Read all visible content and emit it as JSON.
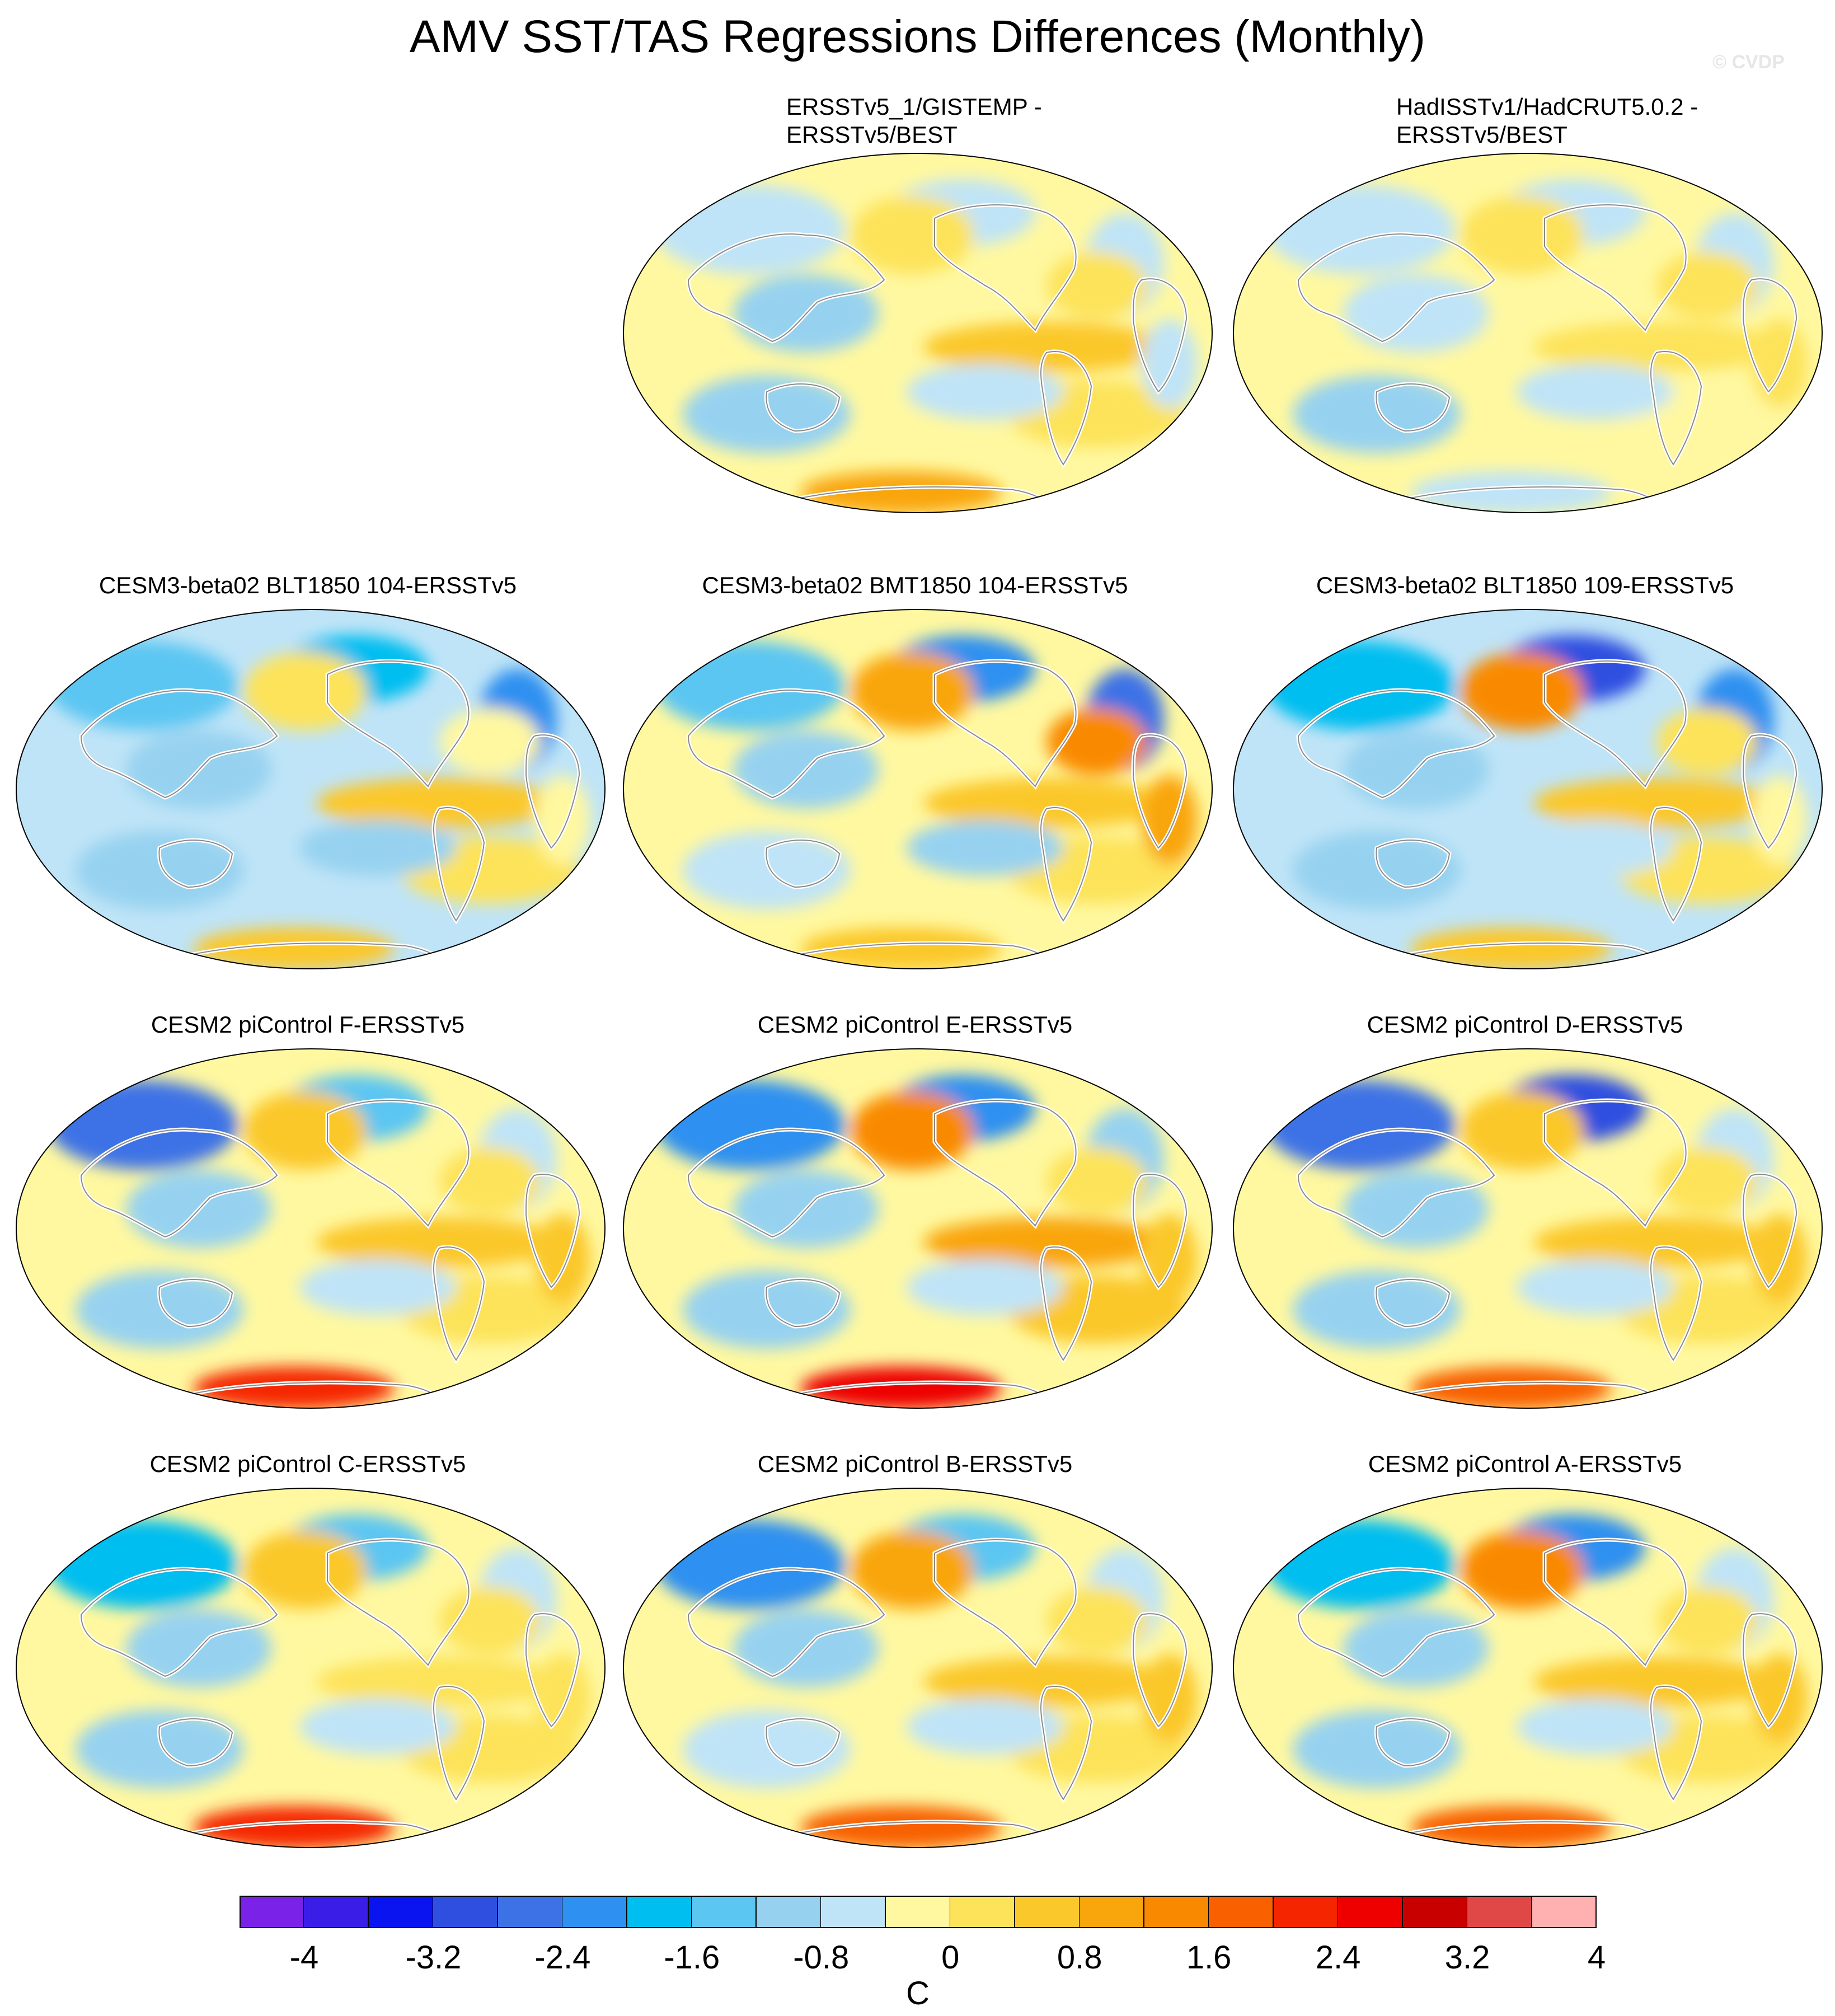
{
  "title": "AMV SST/TAS Regressions Differences (Monthly)",
  "watermark": "© CVDP",
  "panels": [
    {
      "title_lines": [
        "ERSSTv5_1/GISTEMP -",
        "ERSSTv5/BEST"
      ],
      "palette": "obs1"
    },
    {
      "title_lines": [
        "HadISSTv1/HadCRUT5.0.2 -",
        "ERSSTv5/BEST"
      ],
      "palette": "obs2"
    },
    {
      "title_lines": [
        "CESM3-beta02 BLT1850 104-ERSSTv5"
      ],
      "palette": "m1"
    },
    {
      "title_lines": [
        "CESM3-beta02 BMT1850 104-ERSSTv5"
      ],
      "palette": "m2"
    },
    {
      "title_lines": [
        "CESM3-beta02 BLT1850 109-ERSSTv5"
      ],
      "palette": "m3"
    },
    {
      "title_lines": [
        "CESM2 piControl F-ERSSTv5"
      ],
      "palette": "p1"
    },
    {
      "title_lines": [
        "CESM2 piControl E-ERSSTv5"
      ],
      "palette": "p2"
    },
    {
      "title_lines": [
        "CESM2 piControl D-ERSSTv5"
      ],
      "palette": "p3"
    },
    {
      "title_lines": [
        "CESM2 piControl C-ERSSTv5"
      ],
      "palette": "p4"
    },
    {
      "title_lines": [
        "CESM2 piControl B-ERSSTv5"
      ],
      "palette": "p5"
    },
    {
      "title_lines": [
        "CESM2 piControl A-ERSSTv5"
      ],
      "palette": "p6"
    }
  ],
  "colorbar": {
    "colors": [
      "#7b22e8",
      "#3a1ee8",
      "#0a14f0",
      "#2f4fe0",
      "#3d72e6",
      "#2e90f0",
      "#00bef0",
      "#5cc6f2",
      "#96d2f0",
      "#bfe4f7",
      "#fff8a0",
      "#fde35a",
      "#fbc82c",
      "#f9a60c",
      "#f98a00",
      "#f86000",
      "#f52500",
      "#ee0000",
      "#c80000",
      "#e04848",
      "#ffb0b0"
    ],
    "tick_labels": [
      "-4",
      "-3.2",
      "-2.4",
      "-1.6",
      "-0.8",
      "0",
      "0.8",
      "1.6",
      "2.4",
      "3.2",
      "4"
    ],
    "units": "C"
  }
}
